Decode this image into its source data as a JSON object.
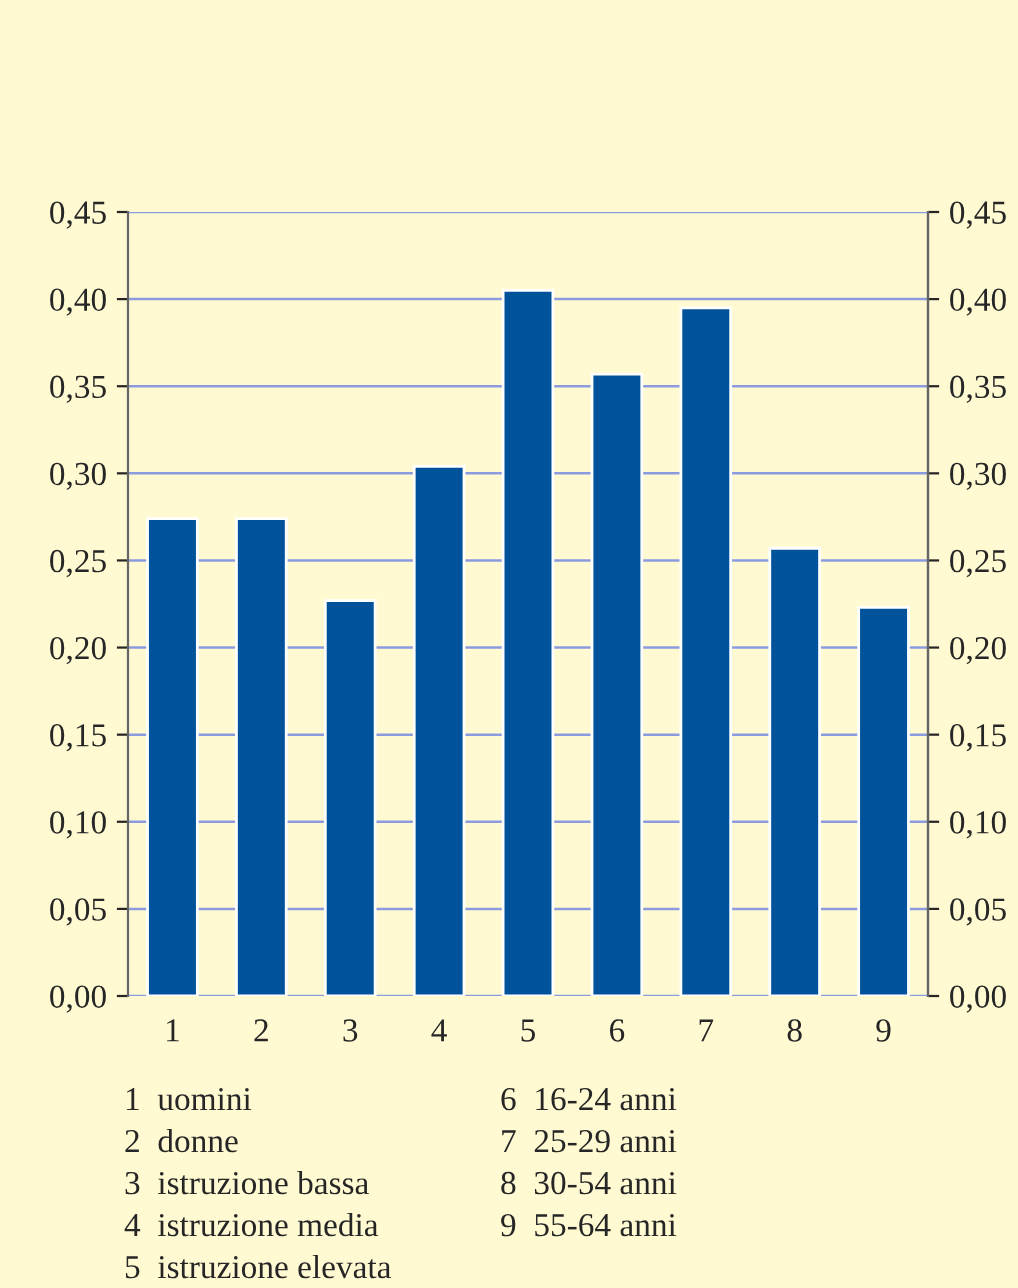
{
  "chart_data": {
    "type": "bar",
    "categories": [
      "1",
      "2",
      "3",
      "4",
      "5",
      "6",
      "7",
      "8",
      "9"
    ],
    "values": [
      0.274,
      0.274,
      0.227,
      0.304,
      0.405,
      0.357,
      0.395,
      0.257,
      0.223
    ],
    "color": "#00529b",
    "ylim": [
      0,
      0.45
    ],
    "yticks": [
      {
        "value": 0,
        "label": "0,00"
      },
      {
        "value": 0.05,
        "label": "0,05"
      },
      {
        "value": 0.1,
        "label": "0,10"
      },
      {
        "value": 0.15,
        "label": "0,15"
      },
      {
        "value": 0.2,
        "label": "0,20"
      },
      {
        "value": 0.25,
        "label": "0,25"
      },
      {
        "value": 0.3,
        "label": "0,30"
      },
      {
        "value": 0.35,
        "label": "0,35"
      },
      {
        "value": 0.4,
        "label": "0,40"
      },
      {
        "value": 0.45,
        "label": "0,45"
      }
    ],
    "y2lim": [
      0,
      0.45
    ],
    "y2ticks": [
      {
        "value": 0,
        "label": "0,00"
      },
      {
        "value": 0.05,
        "label": "0,05"
      },
      {
        "value": 0.1,
        "label": "0,10"
      },
      {
        "value": 0.15,
        "label": "0,15"
      },
      {
        "value": 0.2,
        "label": "0,20"
      },
      {
        "value": 0.25,
        "label": "0,25"
      },
      {
        "value": 0.3,
        "label": "0,30"
      },
      {
        "value": 0.35,
        "label": "0,35"
      },
      {
        "value": 0.4,
        "label": "0,40"
      },
      {
        "value": 0.45,
        "label": "0,45"
      }
    ],
    "grid": true,
    "annotations": [
      "1  uomini",
      "2  donne",
      "3  istruzione bassa",
      "4  istruzione media",
      "5  istruzione elevata",
      "6  16-24 anni",
      "7  25-29 anni",
      "8  30-54 anni",
      "9  55-64 anni"
    ]
  }
}
